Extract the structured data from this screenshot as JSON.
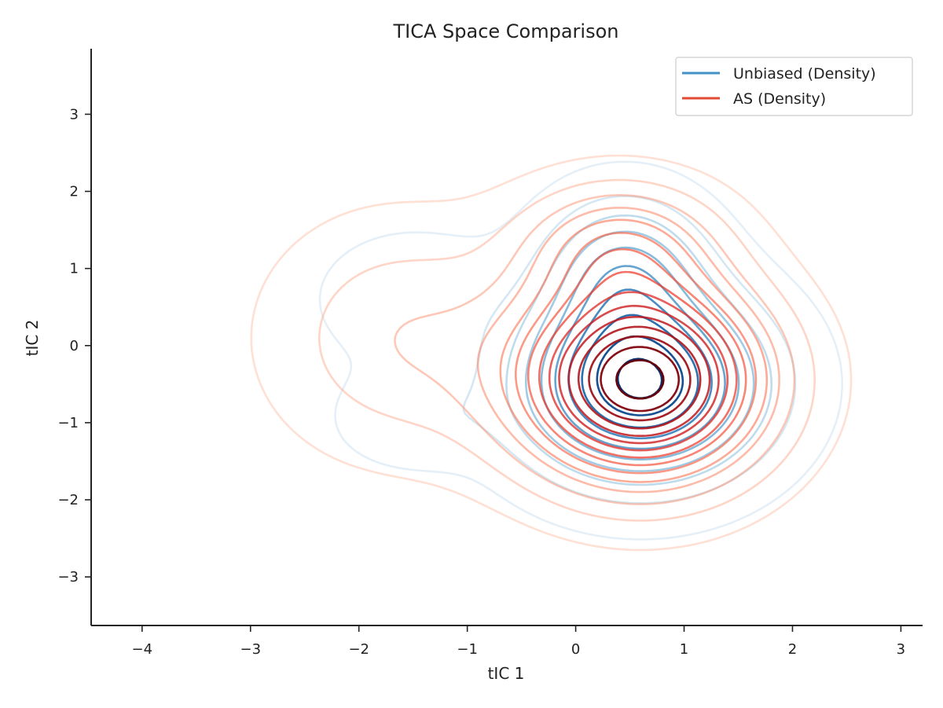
{
  "chart_data": {
    "type": "contour",
    "title": "TICA Space Comparison",
    "xlabel": "tIC 1",
    "ylabel": "tIC 2",
    "xlim": [
      -4.47,
      3.2
    ],
    "ylim": [
      -3.63,
      3.85
    ],
    "xticks": [
      -4,
      -3,
      -2,
      -1,
      0,
      1,
      2,
      3
    ],
    "yticks": [
      -3,
      -2,
      -1,
      0,
      1,
      2,
      3
    ],
    "xtick_labels": [
      "−4",
      "−3",
      "−2",
      "−1",
      "0",
      "1",
      "2",
      "3"
    ],
    "ytick_labels": [
      "−3",
      "−2",
      "−1",
      "0",
      "1",
      "2",
      "3"
    ],
    "grid": false,
    "legend_position": "top-right",
    "series": [
      {
        "name": "Unbiased (Density)",
        "color": "#4292c6",
        "colormap": "Blues",
        "levels": 10,
        "components": [
          {
            "mx": 0.6,
            "my": -0.5,
            "sx": 0.72,
            "sy": 0.78,
            "w": 1.0
          },
          {
            "mx": 0.45,
            "my": 1.0,
            "sx": 0.48,
            "sy": 0.62,
            "w": 0.42
          },
          {
            "mx": -1.5,
            "my": -0.95,
            "sx": 0.45,
            "sy": 0.4,
            "w": 0.12
          },
          {
            "mx": -1.5,
            "my": 0.6,
            "sx": 0.6,
            "sy": 0.6,
            "w": 0.1
          }
        ]
      },
      {
        "name": "AS (Density)",
        "color": "#e34a33",
        "colormap": "Reds",
        "levels": 15,
        "components": [
          {
            "mx": 0.6,
            "my": -0.45,
            "sx": 0.75,
            "sy": 0.85,
            "w": 1.0
          },
          {
            "mx": 0.4,
            "my": 1.3,
            "sx": 0.6,
            "sy": 0.55,
            "w": 0.3
          },
          {
            "mx": -1.6,
            "my": 0.1,
            "sx": 0.8,
            "sy": 1.0,
            "w": 0.16
          }
        ]
      }
    ]
  }
}
